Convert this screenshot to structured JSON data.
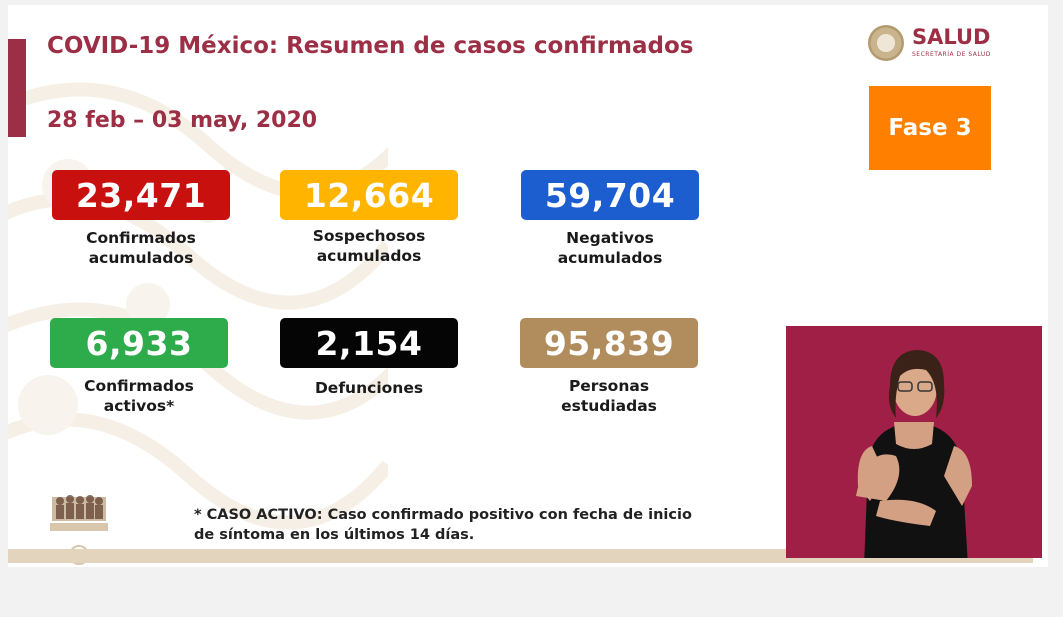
{
  "header": {
    "title": "COVID-19 México: Resumen de casos confirmados",
    "date_range": "28 feb – 03 may, 2020"
  },
  "logo": {
    "name": "SALUD",
    "subtitle": "SECRETARÍA DE SALUD"
  },
  "phase": {
    "label": "Fase 3",
    "color": "#ff8000"
  },
  "stats": [
    {
      "value": "23,471",
      "label_line1": "Confirmados",
      "label_line2": "acumulados",
      "color": "#c8100f"
    },
    {
      "value": "12,664",
      "label_line1": "Sospechosos",
      "label_line2": "acumulados",
      "color": "#ffb400"
    },
    {
      "value": "59,704",
      "label_line1": "Negativos",
      "label_line2": "acumulados",
      "color": "#1c5ecf"
    },
    {
      "value": "6,933",
      "label_line1": "Confirmados",
      "label_line2": "activos*",
      "color": "#2eab4a"
    },
    {
      "value": "2,154",
      "label_line1": "Defunciones",
      "label_line2": "",
      "color": "#050505"
    },
    {
      "value": "95,839",
      "label_line1": "Personas",
      "label_line2": "estudiadas",
      "color": "#b18d5e"
    }
  ],
  "footnote": {
    "line1": "* CASO ACTIVO: Caso confirmado positivo con fecha de inicio",
    "line2": "de síntoma en los últimos 14 días."
  },
  "colors": {
    "brand": "#9c2f45",
    "interpreter_background": "#a01f46"
  }
}
